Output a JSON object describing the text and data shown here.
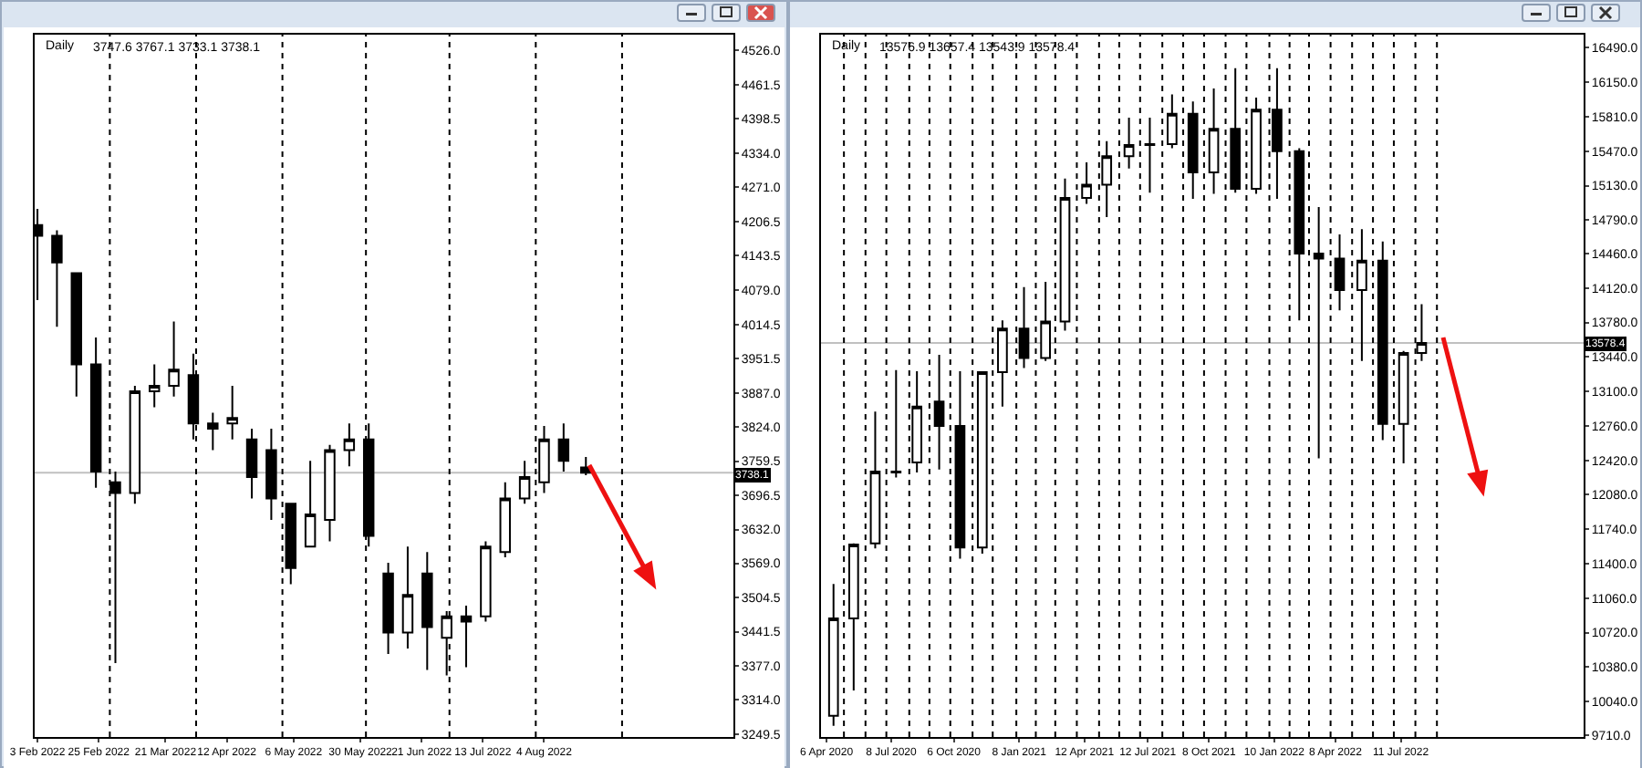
{
  "chart_data": [
    {
      "type": "candlestick",
      "title": "Daily",
      "annotations": [
        "3747.6 3767.1 3733.1 3738.1"
      ],
      "color": "#000000",
      "x": [
        "2022-02-03",
        "2022-02-10",
        "2022-02-17",
        "2022-02-24",
        "2022-03-03",
        "2022-03-10",
        "2022-03-17",
        "2022-03-24",
        "2022-03-31",
        "2022-04-07",
        "2022-04-14",
        "2022-04-21",
        "2022-04-28",
        "2022-05-05",
        "2022-05-12",
        "2022-05-19",
        "2022-05-26",
        "2022-06-02",
        "2022-06-09",
        "2022-06-16",
        "2022-06-23",
        "2022-06-30",
        "2022-07-07",
        "2022-07-14",
        "2022-07-21",
        "2022-07-28",
        "2022-08-04",
        "2022-08-11",
        "2022-08-19"
      ],
      "ohlc": [
        [
          4200,
          4230,
          4060,
          4180
        ],
        [
          4180,
          4190,
          4010,
          4130
        ],
        [
          4110,
          4110,
          3880,
          3940
        ],
        [
          3940,
          3990,
          3710,
          3740
        ],
        [
          3720,
          3740,
          3383,
          3700
        ],
        [
          3700,
          3900,
          3680,
          3890
        ],
        [
          3890,
          3940,
          3860,
          3900
        ],
        [
          3900,
          4020,
          3880,
          3930
        ],
        [
          3920,
          3960,
          3800,
          3830
        ],
        [
          3830,
          3850,
          3780,
          3820
        ],
        [
          3830,
          3900,
          3800,
          3840
        ],
        [
          3800,
          3820,
          3690,
          3730
        ],
        [
          3780,
          3820,
          3650,
          3690
        ],
        [
          3680,
          3680,
          3530,
          3560
        ],
        [
          3600,
          3760,
          3600,
          3660
        ],
        [
          3650,
          3790,
          3610,
          3780
        ],
        [
          3780,
          3830,
          3750,
          3800
        ],
        [
          3800,
          3830,
          3600,
          3620
        ],
        [
          3550,
          3570,
          3400,
          3440
        ],
        [
          3440,
          3600,
          3410,
          3510
        ],
        [
          3550,
          3590,
          3370,
          3450
        ],
        [
          3430,
          3480,
          3360,
          3470
        ],
        [
          3470,
          3490,
          3375,
          3460
        ],
        [
          3470,
          3610,
          3460,
          3600
        ],
        [
          3590,
          3720,
          3580,
          3690
        ],
        [
          3690,
          3760,
          3680,
          3730
        ],
        [
          3720,
          3825,
          3700,
          3800
        ],
        [
          3800,
          3830,
          3740,
          3760
        ],
        [
          3747.6,
          3767.1,
          3733.1,
          3738.1
        ]
      ],
      "xlim": [
        "2022-02-02",
        "2022-10-11"
      ],
      "xticks": [
        {
          "value": "2022-02-03",
          "label": "3 Feb 2022"
        },
        {
          "value": "2022-02-25",
          "label": "25 Feb 2022"
        },
        {
          "value": "2022-03-21",
          "label": "21 Mar 2022"
        },
        {
          "value": "2022-04-12",
          "label": "12 Apr 2022"
        },
        {
          "value": "2022-05-06",
          "label": "6 May 2022"
        },
        {
          "value": "2022-05-30",
          "label": "30 May 2022"
        },
        {
          "value": "2022-06-21",
          "label": "21 Jun 2022"
        },
        {
          "value": "2022-07-13",
          "label": "13 Jul 2022"
        },
        {
          "value": "2022-08-04",
          "label": "4 Aug 2022"
        }
      ],
      "ylim": [
        3245,
        4555
      ],
      "yticks": [
        {
          "value": 3249.5,
          "label": "3249.5"
        },
        {
          "value": 3314,
          "label": "3314.0"
        },
        {
          "value": 3377,
          "label": "3377.0"
        },
        {
          "value": 3441.5,
          "label": "3441.5"
        },
        {
          "value": 3504.5,
          "label": "3504.5"
        },
        {
          "value": 3569,
          "label": "3569.0"
        },
        {
          "value": 3632,
          "label": "3632.0"
        },
        {
          "value": 3696.5,
          "label": "3696.5"
        },
        {
          "value": 3759.5,
          "label": "3759.5"
        },
        {
          "value": 3824,
          "label": "3824.0"
        },
        {
          "value": 3887,
          "label": "3887.0"
        },
        {
          "value": 3951.5,
          "label": "3951.5"
        },
        {
          "value": 4014.5,
          "label": "4014.5"
        },
        {
          "value": 4079,
          "label": "4079.0"
        },
        {
          "value": 4143.5,
          "label": "4143.5"
        },
        {
          "value": 4206.5,
          "label": "4206.5"
        },
        {
          "value": 4271,
          "label": "4271.0"
        },
        {
          "value": 4334,
          "label": "4334.0"
        },
        {
          "value": 4398.5,
          "label": "4398.5"
        },
        {
          "value": 4461.5,
          "label": "4461.5"
        },
        {
          "value": 4526,
          "label": "4526.0"
        }
      ],
      "ref_lines": [
        {
          "axis": "y",
          "value": 3738.1,
          "label": "3738.1",
          "color": "#c0c0c0",
          "line_style": "solid"
        },
        {
          "axis": "x",
          "value": "2022-03-01",
          "color": "#000000",
          "line_style": "dotted"
        },
        {
          "axis": "x",
          "value": "2022-04-01",
          "color": "#000000",
          "line_style": "dotted"
        },
        {
          "axis": "x",
          "value": "2022-05-02",
          "color": "#000000",
          "line_style": "dotted"
        },
        {
          "axis": "x",
          "value": "2022-06-01",
          "color": "#000000",
          "line_style": "dotted"
        },
        {
          "axis": "x",
          "value": "2022-07-01",
          "color": "#000000",
          "line_style": "dotted"
        },
        {
          "axis": "x",
          "value": "2022-08-01",
          "color": "#000000",
          "line_style": "dotted"
        },
        {
          "axis": "x",
          "value": "2022-09-01",
          "color": "#000000",
          "line_style": "dotted"
        }
      ]
    },
    {
      "type": "candlestick",
      "title": "Daily",
      "annotations": [
        "13576.9 13657.4 13543.9 13578.4"
      ],
      "color": "#000000",
      "x": [
        "2020-04-16",
        "2020-05-15",
        "2020-06-15",
        "2020-07-15",
        "2020-08-14",
        "2020-09-15",
        "2020-10-15",
        "2020-11-16",
        "2020-12-15",
        "2021-01-15",
        "2021-02-15",
        "2021-03-15",
        "2021-04-15",
        "2021-05-14",
        "2021-06-15",
        "2021-07-15",
        "2021-08-16",
        "2021-09-15",
        "2021-10-15",
        "2021-11-15",
        "2021-12-15",
        "2022-01-14",
        "2022-02-15",
        "2022-03-15",
        "2022-04-14",
        "2022-05-16",
        "2022-06-15",
        "2022-07-15",
        "2022-08-10"
      ],
      "ohlc": [
        [
          9900,
          11200,
          9800,
          10860
        ],
        [
          10860,
          11600,
          10150,
          11590
        ],
        [
          11600,
          12900,
          11550,
          12310
        ],
        [
          12300,
          13310,
          12250,
          12310
        ],
        [
          12400,
          13300,
          12300,
          12950
        ],
        [
          13000,
          13460,
          12330,
          12760
        ],
        [
          12760,
          13300,
          11450,
          11560
        ],
        [
          11560,
          13300,
          11500,
          13290
        ],
        [
          13290,
          13800,
          12950,
          13720
        ],
        [
          13720,
          14130,
          13330,
          13430
        ],
        [
          13430,
          14180,
          13400,
          13790
        ],
        [
          13790,
          15200,
          13700,
          15010
        ],
        [
          15010,
          15360,
          14950,
          15140
        ],
        [
          15140,
          15570,
          14820,
          15420
        ],
        [
          15420,
          15800,
          15300,
          15530
        ],
        [
          15530,
          15800,
          15060,
          15540
        ],
        [
          15540,
          16030,
          15500,
          15840
        ],
        [
          15840,
          15960,
          15000,
          15260
        ],
        [
          15260,
          16090,
          15050,
          15690
        ],
        [
          15690,
          16290,
          15060,
          15100
        ],
        [
          15100,
          16000,
          15050,
          15880
        ],
        [
          15880,
          16290,
          15000,
          15470
        ],
        [
          15470,
          15500,
          13800,
          14460
        ],
        [
          14460,
          14920,
          12440,
          14410
        ],
        [
          14410,
          14650,
          13900,
          14100
        ],
        [
          14100,
          14700,
          13400,
          14390
        ],
        [
          14390,
          14580,
          12620,
          12780
        ],
        [
          12780,
          13500,
          12390,
          13480
        ],
        [
          13480,
          13960,
          13400,
          13578.4
        ]
      ],
      "xlim": [
        "2020-03-29",
        "2023-03-31"
      ],
      "xticks": [
        {
          "value": "2020-04-06",
          "label": "6 Apr 2020"
        },
        {
          "value": "2020-07-08",
          "label": "8 Jul 2020"
        },
        {
          "value": "2020-10-06",
          "label": "6 Oct 2020"
        },
        {
          "value": "2021-01-08",
          "label": "8 Jan 2021"
        },
        {
          "value": "2021-04-12",
          "label": "12 Apr 2021"
        },
        {
          "value": "2021-07-12",
          "label": "12 Jul 2021"
        },
        {
          "value": "2021-10-08",
          "label": "8 Oct 2021"
        },
        {
          "value": "2022-01-10",
          "label": "10 Jan 2022"
        },
        {
          "value": "2022-04-08",
          "label": "8 Apr 2022"
        },
        {
          "value": "2022-07-11",
          "label": "11 Jul 2022"
        }
      ],
      "ylim": [
        9690,
        16620
      ],
      "yticks": [
        {
          "value": 9710,
          "label": "9710.0"
        },
        {
          "value": 10040,
          "label": "10040.0"
        },
        {
          "value": 10380,
          "label": "10380.0"
        },
        {
          "value": 10720,
          "label": "10720.0"
        },
        {
          "value": 11060,
          "label": "11060.0"
        },
        {
          "value": 11400,
          "label": "11400.0"
        },
        {
          "value": 11740,
          "label": "11740.0"
        },
        {
          "value": 12080,
          "label": "12080.0"
        },
        {
          "value": 12420,
          "label": "12420.0"
        },
        {
          "value": 12760,
          "label": "12760.0"
        },
        {
          "value": 13100,
          "label": "13100.0"
        },
        {
          "value": 13440,
          "label": "13440.0"
        },
        {
          "value": 13780,
          "label": "13780.0"
        },
        {
          "value": 14120,
          "label": "14120.0"
        },
        {
          "value": 14460,
          "label": "14460.0"
        },
        {
          "value": 14790,
          "label": "14790.0"
        },
        {
          "value": 15130,
          "label": "15130.0"
        },
        {
          "value": 15470,
          "label": "15470.0"
        },
        {
          "value": 15810,
          "label": "15810.0"
        },
        {
          "value": 16150,
          "label": "16150.0"
        },
        {
          "value": 16490,
          "label": "16490.0"
        }
      ],
      "ref_lines": [
        {
          "axis": "y",
          "value": 13578.4,
          "label": "13578.4",
          "color": "#c0c0c0",
          "line_style": "solid"
        },
        {
          "axis": "x",
          "value": "2020-05-01",
          "color": "#000000",
          "line_style": "dotted"
        },
        {
          "axis": "x",
          "value": "2020-06-01",
          "color": "#000000",
          "line_style": "dotted"
        },
        {
          "axis": "x",
          "value": "2020-07-01",
          "color": "#000000",
          "line_style": "dotted"
        },
        {
          "axis": "x",
          "value": "2020-08-03",
          "color": "#000000",
          "line_style": "dotted"
        },
        {
          "axis": "x",
          "value": "2020-09-01",
          "color": "#000000",
          "line_style": "dotted"
        },
        {
          "axis": "x",
          "value": "2020-10-01",
          "color": "#000000",
          "line_style": "dotted"
        },
        {
          "axis": "x",
          "value": "2020-11-02",
          "color": "#000000",
          "line_style": "dotted"
        },
        {
          "axis": "x",
          "value": "2020-12-01",
          "color": "#000000",
          "line_style": "dotted"
        },
        {
          "axis": "x",
          "value": "2021-01-04",
          "color": "#000000",
          "line_style": "dotted"
        },
        {
          "axis": "x",
          "value": "2021-02-01",
          "color": "#000000",
          "line_style": "dotted"
        },
        {
          "axis": "x",
          "value": "2021-03-01",
          "color": "#000000",
          "line_style": "dotted"
        },
        {
          "axis": "x",
          "value": "2021-04-01",
          "color": "#000000",
          "line_style": "dotted"
        },
        {
          "axis": "x",
          "value": "2021-05-03",
          "color": "#000000",
          "line_style": "dotted"
        },
        {
          "axis": "x",
          "value": "2021-06-01",
          "color": "#000000",
          "line_style": "dotted"
        },
        {
          "axis": "x",
          "value": "2021-07-01",
          "color": "#000000",
          "line_style": "dotted"
        },
        {
          "axis": "x",
          "value": "2021-08-02",
          "color": "#000000",
          "line_style": "dotted"
        },
        {
          "axis": "x",
          "value": "2021-09-01",
          "color": "#000000",
          "line_style": "dotted"
        },
        {
          "axis": "x",
          "value": "2021-10-01",
          "color": "#000000",
          "line_style": "dotted"
        },
        {
          "axis": "x",
          "value": "2021-11-01",
          "color": "#000000",
          "line_style": "dotted"
        },
        {
          "axis": "x",
          "value": "2021-12-01",
          "color": "#000000",
          "line_style": "dotted"
        },
        {
          "axis": "x",
          "value": "2022-01-03",
          "color": "#000000",
          "line_style": "dotted"
        },
        {
          "axis": "x",
          "value": "2022-02-01",
          "color": "#000000",
          "line_style": "dotted"
        },
        {
          "axis": "x",
          "value": "2022-03-01",
          "color": "#000000",
          "line_style": "dotted"
        },
        {
          "axis": "x",
          "value": "2022-04-01",
          "color": "#000000",
          "line_style": "dotted"
        },
        {
          "axis": "x",
          "value": "2022-05-02",
          "color": "#000000",
          "line_style": "dotted"
        },
        {
          "axis": "x",
          "value": "2022-06-01",
          "color": "#000000",
          "line_style": "dotted"
        },
        {
          "axis": "x",
          "value": "2022-07-01",
          "color": "#000000",
          "line_style": "dotted"
        },
        {
          "axis": "x",
          "value": "2022-08-01",
          "color": "#000000",
          "line_style": "dotted"
        },
        {
          "axis": "x",
          "value": "2022-09-01",
          "color": "#000000",
          "line_style": "dotted"
        }
      ]
    }
  ]
}
